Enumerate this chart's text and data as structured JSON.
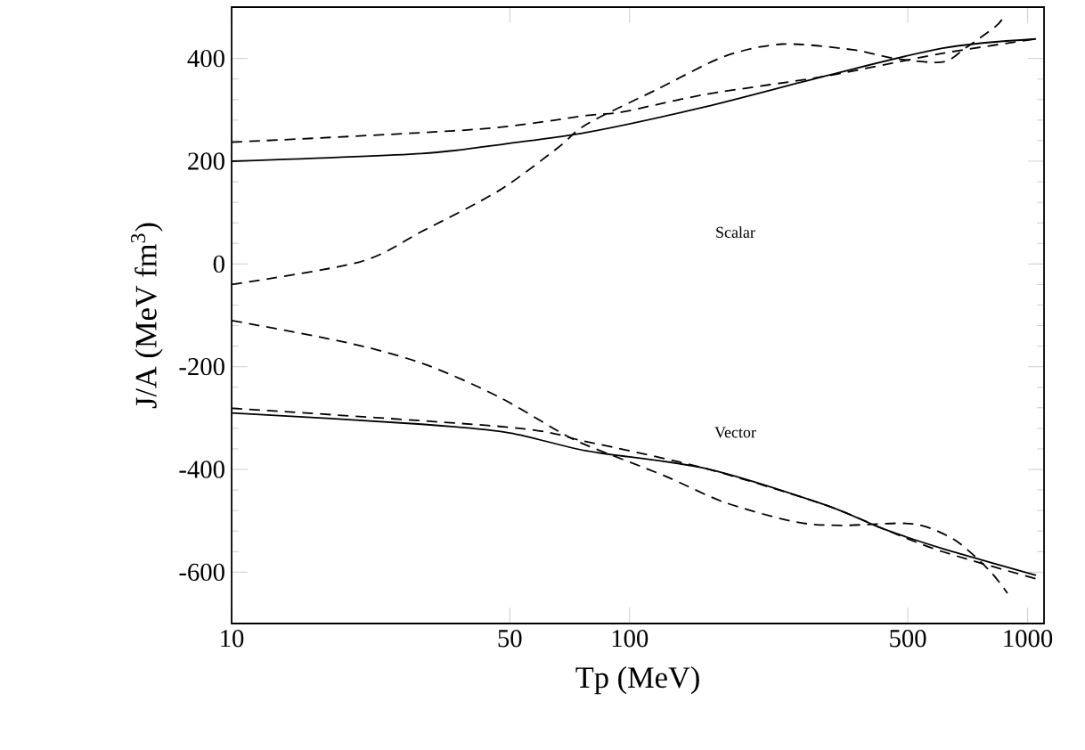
{
  "chart_data": {
    "type": "line",
    "xlabel": "Tp (MeV)",
    "ylabel": "J/A (MeV fm$^{3}$)",
    "log": "x",
    "grid": false,
    "marker": "none",
    "xlim": [
      10,
      1100
    ],
    "ylim": [
      -700,
      500
    ],
    "xticks": [
      10,
      50,
      100,
      500,
      1000
    ],
    "yticks": [
      -600,
      -400,
      -200,
      0,
      200,
      400
    ],
    "annotations": [
      "Scalar",
      "Vector"
    ],
    "series": [
      {
        "color": "#000000",
        "line_style": "solid",
        "x": [
          10,
          30,
          50,
          78,
          155,
          307,
          611,
          1050
        ],
        "values": [
          200,
          215,
          235,
          256,
          306,
          365,
          420,
          438
        ]
      },
      {
        "color": "#000000",
        "line_style": "dashed",
        "x": [
          10,
          41,
          78,
          96,
          155,
          307,
          611,
          1050
        ],
        "values": [
          237,
          262,
          289,
          296,
          330,
          365,
          410,
          438
        ]
      },
      {
        "color": "#000000",
        "line_style": "dashed",
        "x": [
          10,
          21,
          30,
          47,
          66,
          78,
          118,
          173,
          242,
          364,
          464,
          611,
          700,
          830,
          870
        ],
        "values": [
          -40,
          4,
          63,
          143,
          226,
          272,
          341,
          404,
          428,
          417,
          400,
          393,
          421,
          462,
          480
        ]
      },
      {
        "color": "#000000",
        "line_style": "solid",
        "x": [
          10,
          30,
          50,
          78,
          155,
          307,
          435,
          611,
          1050
        ],
        "values": [
          -290,
          -312,
          -329,
          -364,
          -398,
          -468,
          -516,
          -554,
          -606
        ]
      },
      {
        "color": "#000000",
        "line_style": "dashed",
        "x": [
          10,
          50,
          78,
          155,
          307,
          435,
          611,
          1050
        ],
        "values": [
          -281,
          -318,
          -346,
          -398,
          -468,
          -516,
          -560,
          -613
        ]
      },
      {
        "color": "#000000",
        "line_style": "dashed",
        "x": [
          10,
          20,
          31,
          47,
          66,
          78,
          122,
          173,
          260,
          340,
          514,
          655,
          800,
          890
        ],
        "values": [
          -110,
          -155,
          -197,
          -259,
          -325,
          -353,
          -412,
          -464,
          -502,
          -509,
          -506,
          -537,
          -596,
          -641
        ]
      }
    ]
  }
}
